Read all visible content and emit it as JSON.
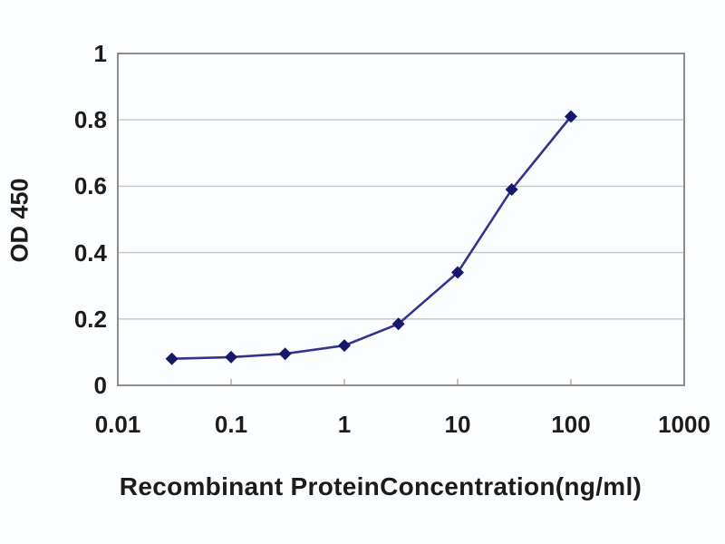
{
  "page": {
    "background_color": "#fcfdfe",
    "text_color": "#1c1c1c"
  },
  "chart_data": {
    "type": "line",
    "title": "",
    "xlabel": "Recombinant ProteinConcentration(ng/ml)",
    "ylabel": "OD 450",
    "x_scale": "log",
    "xlim": [
      0.01,
      1000
    ],
    "ylim": [
      0,
      1
    ],
    "x_ticks": [
      "0.01",
      "0.1",
      "1",
      "10",
      "100",
      "1000"
    ],
    "x_tick_values": [
      0.01,
      0.1,
      1,
      10,
      100,
      1000
    ],
    "y_ticks": [
      "0",
      "0.2",
      "0.4",
      "0.6",
      "0.8",
      "1"
    ],
    "y_tick_values": [
      0,
      0.2,
      0.4,
      0.6,
      0.8,
      1
    ],
    "grid": "horizontal",
    "legend": null,
    "x": [
      0.03,
      0.1,
      0.3,
      1,
      3,
      10,
      30,
      100
    ],
    "series": [
      {
        "name": "OD450",
        "values": [
          0.08,
          0.085,
          0.095,
          0.12,
          0.185,
          0.34,
          0.59,
          0.81
        ]
      }
    ],
    "marker": "diamond",
    "colors": {
      "line": "#34348c",
      "marker": "#18186a",
      "frame": "#8d8d8d",
      "gridline": "#c6c6c6",
      "minor_tick": "#b4b4b4"
    }
  }
}
